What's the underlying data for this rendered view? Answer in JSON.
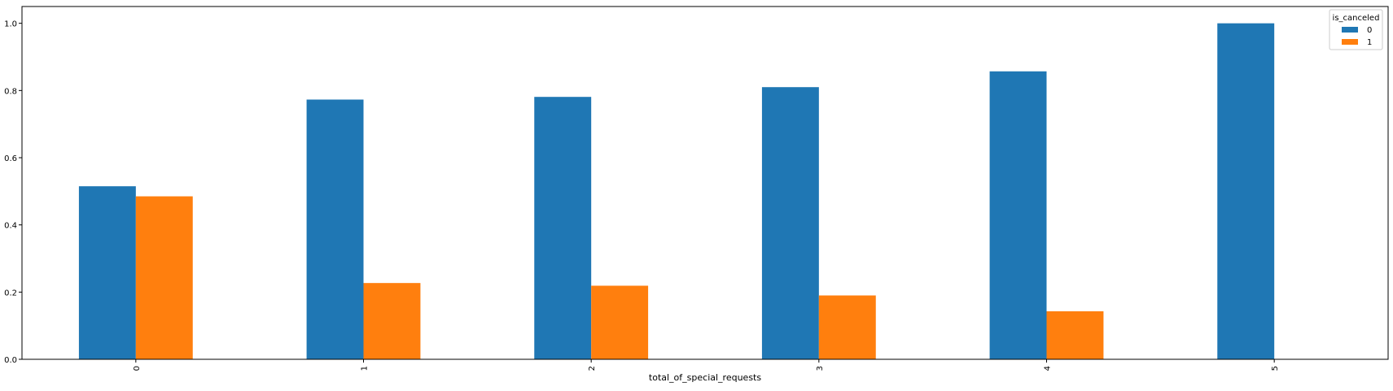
{
  "chart_data": {
    "type": "bar",
    "categories": [
      "0",
      "1",
      "2",
      "3",
      "4",
      "5"
    ],
    "series": [
      {
        "name": "0",
        "values": [
          0.515,
          0.773,
          0.781,
          0.81,
          0.857,
          1.0
        ],
        "color": "#1f77b4"
      },
      {
        "name": "1",
        "values": [
          0.485,
          0.227,
          0.219,
          0.19,
          0.143,
          0.0
        ],
        "color": "#ff7f0e"
      }
    ],
    "title": "",
    "xlabel": "total_of_special_requests",
    "ylabel": "",
    "ylim": [
      0,
      1.05
    ],
    "yticks": [
      "0.0",
      "0.2",
      "0.4",
      "0.6",
      "0.8",
      "1.0"
    ],
    "legend": {
      "title": "is_canceled",
      "position": "top-right"
    },
    "grid": false
  }
}
